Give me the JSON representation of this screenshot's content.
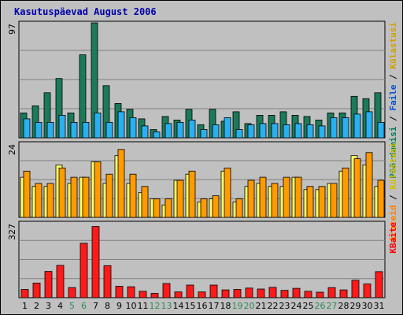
{
  "chart_data": {
    "type": "bar",
    "title": "Kasutuspäevad August 2006",
    "categories": [
      "1",
      "2",
      "3",
      "4",
      "5",
      "6",
      "7",
      "8",
      "9",
      "10",
      "11",
      "12",
      "13",
      "14",
      "15",
      "16",
      "17",
      "18",
      "19",
      "20",
      "21",
      "22",
      "23",
      "24",
      "25",
      "26",
      "27",
      "28",
      "29",
      "30",
      "31"
    ],
    "weekend_days": [
      "5",
      "6",
      "12",
      "13",
      "19",
      "20",
      "26",
      "27"
    ],
    "colors": {
      "weekday_label": "#000000",
      "weekend_label": "#2e8b57",
      "panel_bg": "#c0c0c0",
      "grid": "#808080",
      "title": "#0000aa"
    },
    "panels": [
      {
        "ymax_label": "97",
        "ylim": [
          0,
          97
        ],
        "side_labels": [
          {
            "text": "Pöördumisi",
            "color": "#007a50"
          },
          {
            "text": " / ",
            "color": "#000000"
          },
          {
            "text": "Faile",
            "color": "#0050d0"
          },
          {
            "text": " / ",
            "color": "#000000"
          },
          {
            "text": "Külastusi",
            "color": "#d0a000"
          }
        ],
        "series": [
          {
            "name": "Pöördumisi",
            "color": "#1a7a5a",
            "values": [
              21,
              27,
              38,
              50,
              21,
              70,
              97,
              44,
              29,
              24,
              16,
              7,
              18,
              15,
              24,
              11,
              24,
              14,
              22,
              12,
              19,
              19,
              22,
              19,
              18,
              15,
              21,
              21,
              35,
              33,
              38
            ]
          },
          {
            "name": "Faile",
            "color": "#2ab0f0",
            "values": [
              16,
              13,
              13,
              19,
              13,
              13,
              21,
              13,
              22,
              17,
              10,
              5,
              12,
              13,
              15,
              7,
              11,
              17,
              7,
              11,
              12,
              12,
              11,
              12,
              11,
              10,
              17,
              17,
              20,
              22,
              13
            ]
          }
        ]
      },
      {
        "ymax_label": "24",
        "ylim": [
          0,
          24
        ],
        "side_labels": [
          {
            "text": "Aruteid",
            "color": "#ff8000"
          },
          {
            "text": " / ",
            "color": "#000000"
          },
          {
            "text": "Külastusi",
            "color": "#d0c000"
          }
        ],
        "series": [
          {
            "name": "Külastusi",
            "color": "#ffff60",
            "values": [
              13,
              10,
              10,
              17,
              11,
              13,
              18,
              11,
              20,
              11,
              8,
              6,
              4,
              12,
              14,
              5,
              6,
              15,
              5,
              10,
              11,
              10,
              10,
              13,
              9,
              9,
              11,
              15,
              20,
              17,
              10
            ]
          },
          {
            "name": "Aruteid",
            "color": "#ff9a00",
            "values": [
              15,
              11,
              11,
              16,
              13,
              13,
              18,
              14,
              22,
              14,
              10,
              6,
              6,
              12,
              15,
              6,
              7,
              16,
              6,
              12,
              13,
              11,
              13,
              13,
              10,
              10,
              11,
              16,
              19,
              21,
              12
            ]
          }
        ]
      },
      {
        "ymax_label": "327",
        "ylim": [
          0,
          327
        ],
        "side_labels": [
          {
            "text": "KBaite",
            "color": "#ff0000"
          }
        ],
        "series": [
          {
            "name": "KBaite",
            "color": "#ff1a1a",
            "values": [
              36,
              64,
              115,
              141,
              44,
              238,
              311,
              140,
              50,
              48,
              28,
              19,
              62,
              25,
              55,
              25,
              55,
              34,
              36,
              42,
              38,
              45,
              32,
              41,
              28,
              24,
              44,
              34,
              76,
              60,
              114
            ]
          }
        ]
      }
    ]
  }
}
